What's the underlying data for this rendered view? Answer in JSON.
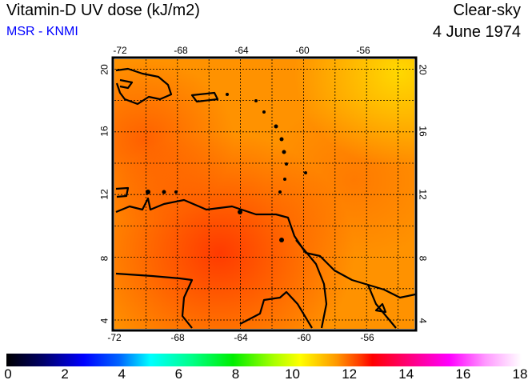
{
  "header": {
    "title": "Vitamin-D UV dose (kJ/m2)",
    "source": "MSR - KNMI",
    "sky": "Clear-sky",
    "date": "4 June 1974"
  },
  "map": {
    "lon_ticks": [
      "-72",
      "-68",
      "-64",
      "-60",
      "-56"
    ],
    "lat_ticks": [
      "20",
      "16",
      "12",
      "8",
      "4"
    ],
    "lon_range": [
      -72,
      -53
    ],
    "lat_range": [
      3.5,
      20.5
    ]
  },
  "colorbar": {
    "labels": [
      "0",
      "2",
      "4",
      "6",
      "8",
      "10",
      "12",
      "14",
      "16",
      "18"
    ],
    "min": 0,
    "max": 18,
    "units": "kJ/m2"
  }
}
